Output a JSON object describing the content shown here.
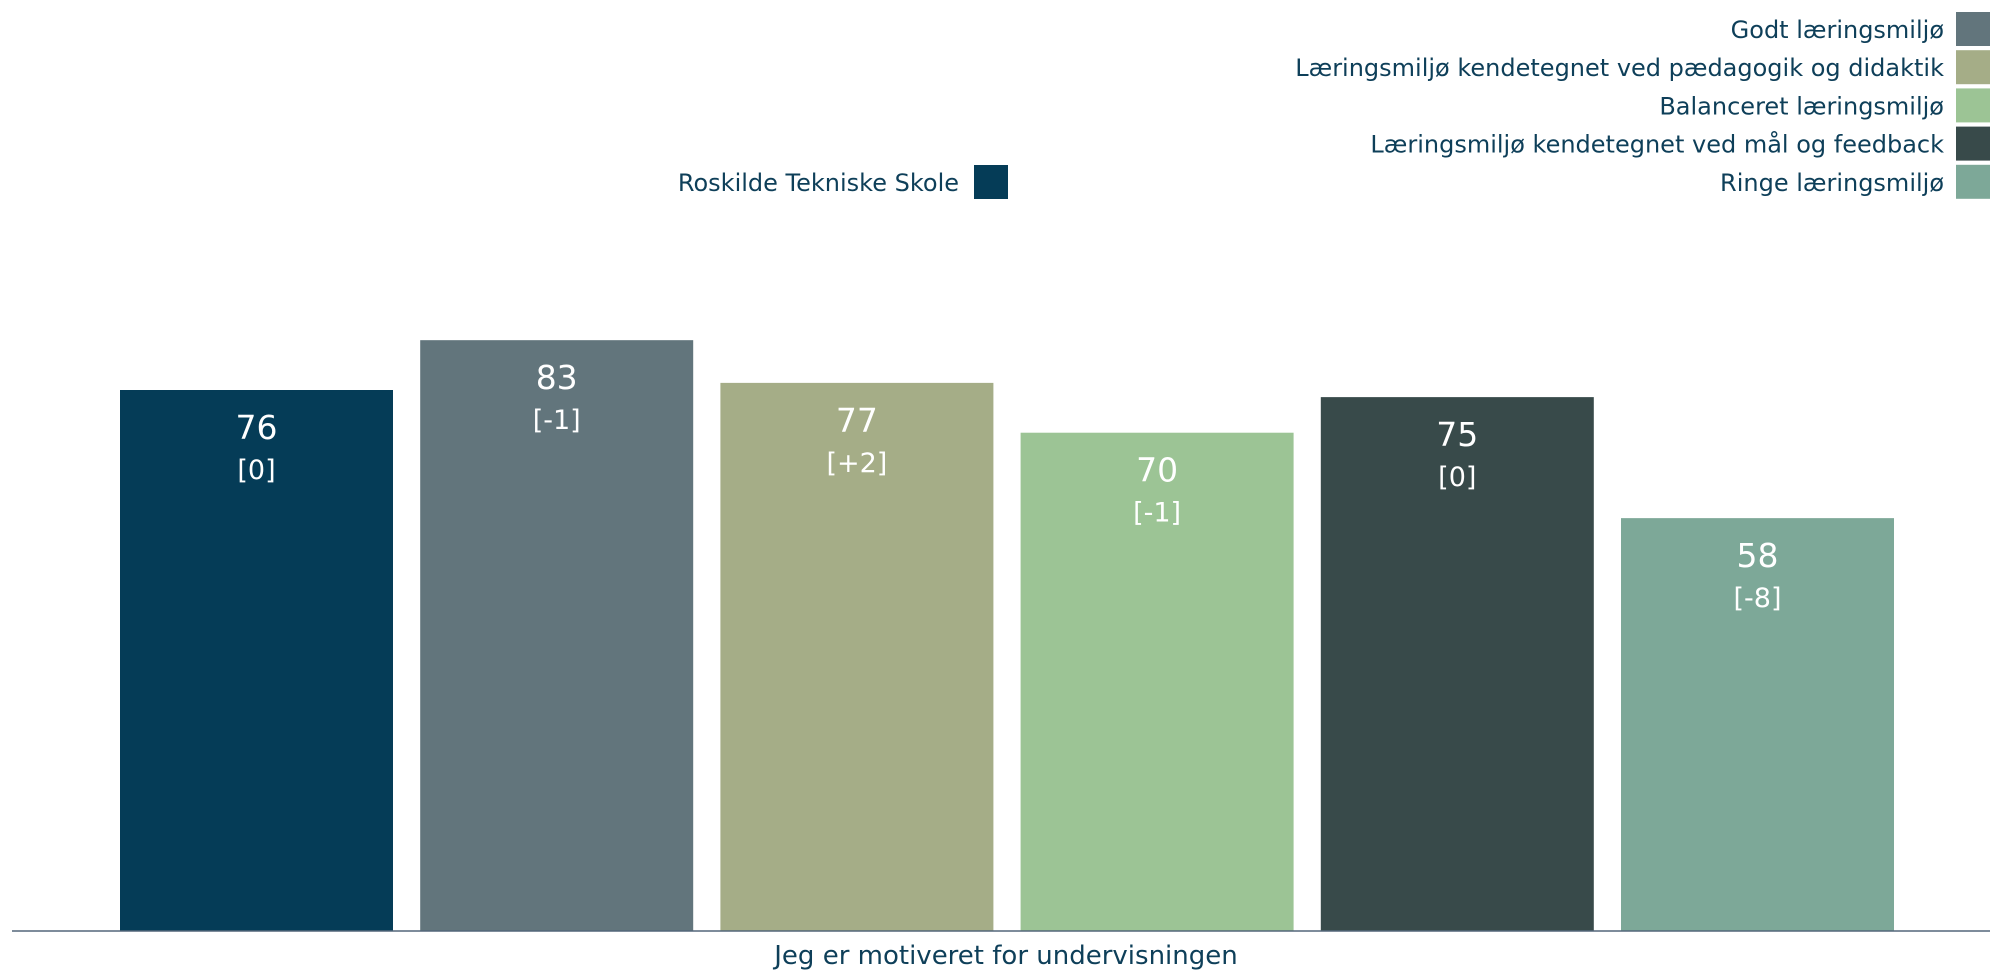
{
  "chart_data": {
    "type": "bar",
    "category": "Jeg er motiveret for undervisningen",
    "ylim": [
      0,
      100
    ],
    "grid": false,
    "series": [
      {
        "name": "Roskilde Tekniske Skole",
        "value": 76,
        "diff": "[0]",
        "color": "#053c57"
      },
      {
        "name": "Godt læringsmiljø",
        "value": 83,
        "diff": "[-1]",
        "color": "#62757c"
      },
      {
        "name": "Læringsmiljø kendetegnet ved pædagogik og didaktik",
        "value": 77,
        "diff": "[+2]",
        "color": "#a5ad87"
      },
      {
        "name": "Balanceret læringsmiljø",
        "value": 70,
        "diff": "[-1]",
        "color": "#9cc495"
      },
      {
        "name": "Læringsmiljø kendetegnet ved mål og feedback",
        "value": 75,
        "diff": "[0]",
        "color": "#384a4a"
      },
      {
        "name": "Ringe læringsmiljø",
        "value": 58,
        "diff": "[-8]",
        "color": "#7da898"
      }
    ],
    "legend": {
      "placement": "top",
      "left_entries": [
        0
      ],
      "right_entries": [
        1,
        2,
        3,
        4,
        5
      ]
    },
    "axis_color": "#53677a",
    "text_color": "#0e3f59"
  }
}
